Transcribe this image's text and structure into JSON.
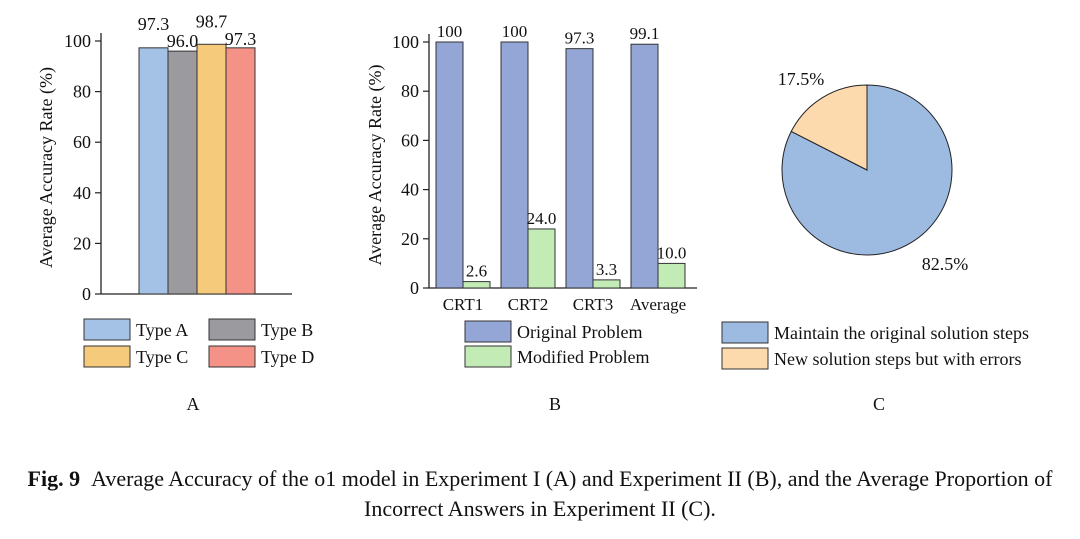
{
  "chart_data": [
    {
      "type": "bar",
      "panel_label": "A",
      "ylabel": "Average Accuracy Rate (%)",
      "ylim": [
        0,
        100
      ],
      "yticks": [
        0,
        20,
        40,
        60,
        80,
        100
      ],
      "grid": false,
      "legend_position": "bottom",
      "series": [
        {
          "name": "Type A",
          "value": 97.3,
          "label": "97.3",
          "color": "#A4C1E6"
        },
        {
          "name": "Type B",
          "value": 96.0,
          "label": "96.0",
          "color": "#9B9A9F"
        },
        {
          "name": "Type C",
          "value": 98.7,
          "label": "98.7",
          "color": "#F6CA7B"
        },
        {
          "name": "Type D",
          "value": 97.3,
          "label": "97.3",
          "color": "#F59287"
        }
      ]
    },
    {
      "type": "bar",
      "panel_label": "B",
      "ylabel": "Average Accuracy Rate (%)",
      "ylim": [
        0,
        100
      ],
      "yticks": [
        0,
        20,
        40,
        60,
        80,
        100
      ],
      "grid": false,
      "legend_position": "bottom",
      "categories": [
        "CRT1",
        "CRT2",
        "CRT3",
        "Average"
      ],
      "series": [
        {
          "name": "Original Problem",
          "values": [
            100,
            100,
            97.3,
            99.1
          ],
          "labels": [
            "100",
            "100",
            "97.3",
            "99.1"
          ],
          "color": "#93A6D6"
        },
        {
          "name": "Modified Problem",
          "values": [
            2.6,
            24.0,
            3.3,
            10.0
          ],
          "labels": [
            "2.6",
            "24.0",
            "3.3",
            "10.0"
          ],
          "color": "#C2EBB6"
        }
      ]
    },
    {
      "type": "pie",
      "panel_label": "C",
      "legend_position": "bottom",
      "slices": [
        {
          "name": "Maintain the original solution steps",
          "value": 82.5,
          "label": "82.5%",
          "color": "#9DBAE1"
        },
        {
          "name": "New solution steps but with errors",
          "value": 17.5,
          "label": "17.5%",
          "color": "#FDD9AE"
        }
      ]
    }
  ],
  "caption": {
    "label": "Fig. 9",
    "text": "Average Accuracy of the o1 model in Experiment I (A) and Experiment II (B), and the Average Proportion of Incorrect Answers in Experiment II (C)."
  }
}
